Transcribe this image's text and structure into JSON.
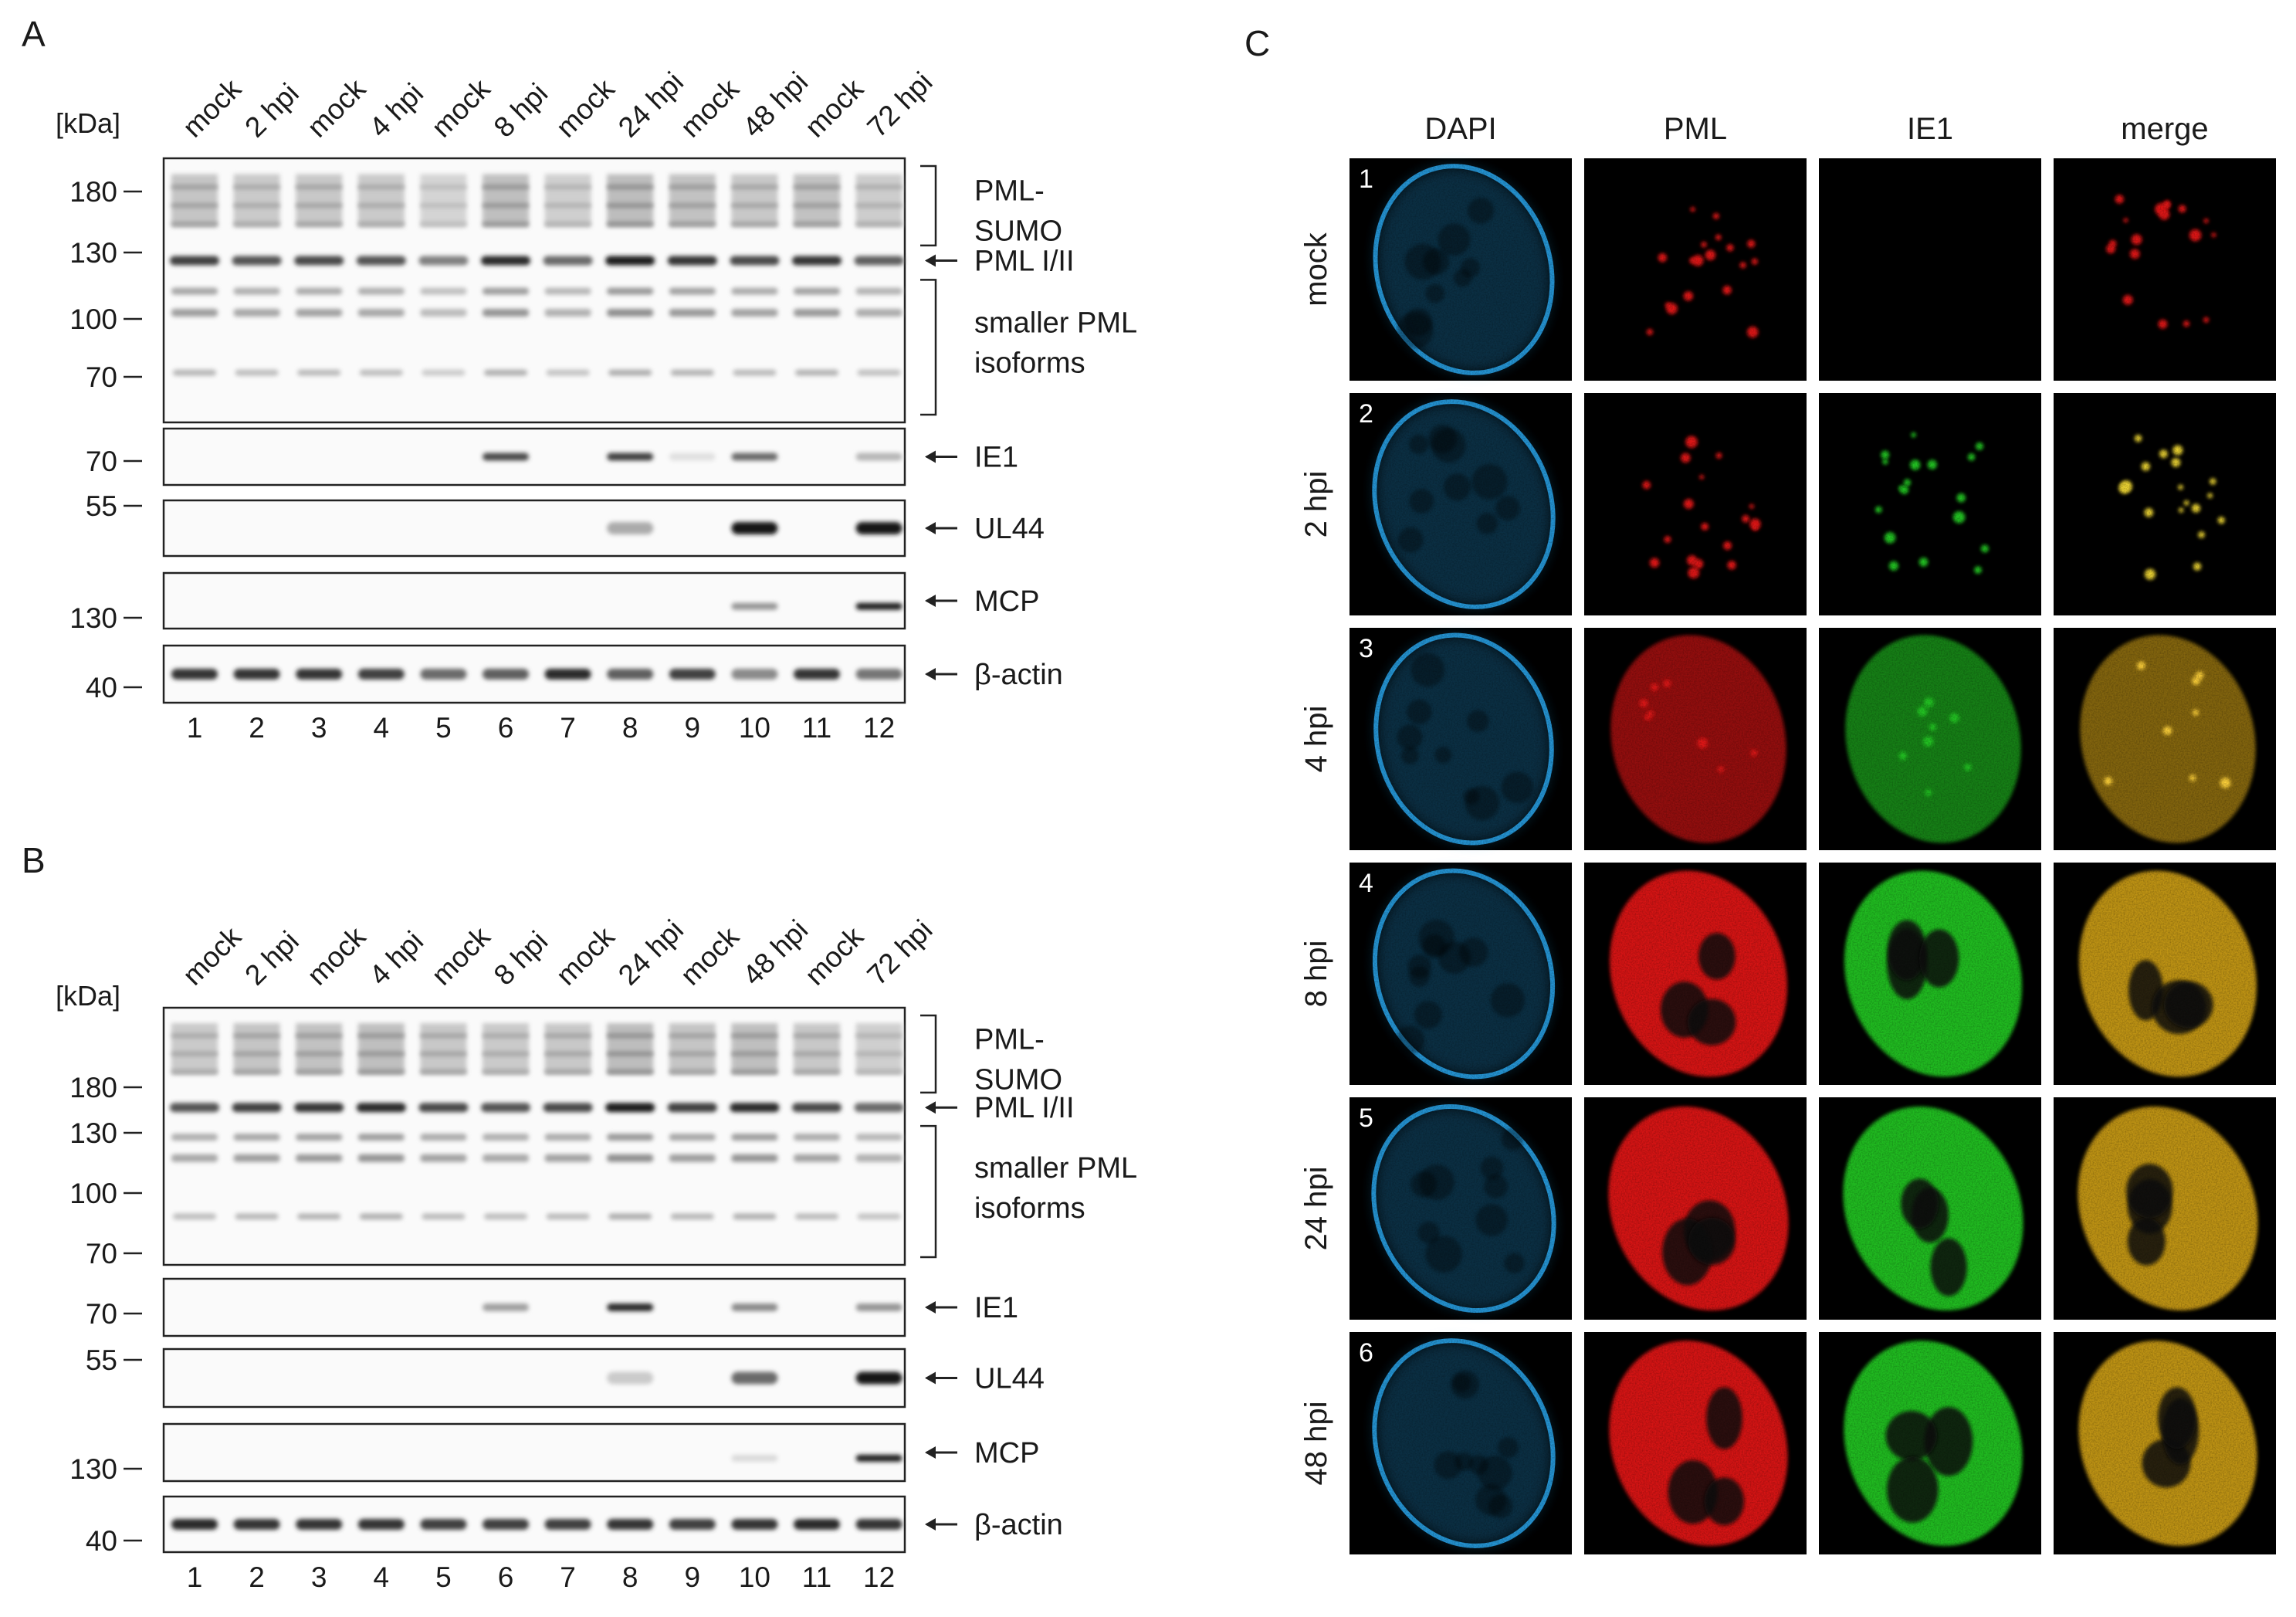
{
  "panel_letters": [
    "A",
    "B",
    "C"
  ],
  "western": {
    "kda_unit": "[kDa]",
    "lane_headers": [
      "mock",
      "2 hpi",
      "mock",
      "4 hpi",
      "mock",
      "8 hpi",
      "mock",
      "24 hpi",
      "mock",
      "48 hpi",
      "mock",
      "72 hpi"
    ],
    "lane_numbers": [
      "1",
      "2",
      "3",
      "4",
      "5",
      "6",
      "7",
      "8",
      "9",
      "10",
      "11",
      "12"
    ],
    "panels": [
      {
        "letter": "A",
        "pml_markers": [
          "180",
          "130",
          "100",
          "70"
        ],
        "ie1_marker": "70",
        "ul44_marker": "55",
        "mcp_marker": "130",
        "actin_marker": "40",
        "pml_sumo_label": [
          "PML-",
          "SUMO"
        ],
        "pml_label": "PML I/II",
        "smaller_label": [
          "smaller PML",
          "isoforms"
        ],
        "ie1_label": "IE1",
        "ul44_label": "UL44",
        "mcp_label": "MCP",
        "actin_label": "β-actin",
        "ie1_levels": [
          0,
          0,
          0,
          0,
          0,
          0.75,
          0,
          0.8,
          0.05,
          0.6,
          0,
          0.25
        ],
        "ul44_levels": [
          0,
          0,
          0,
          0,
          0,
          0,
          0,
          0.3,
          0,
          1.0,
          0,
          1.0
        ],
        "mcp_levels": [
          0,
          0,
          0,
          0,
          0,
          0,
          0,
          0,
          0,
          0.4,
          0,
          0.95
        ],
        "actin_levels": [
          0.85,
          0.85,
          0.85,
          0.8,
          0.6,
          0.65,
          0.9,
          0.65,
          0.8,
          0.45,
          0.85,
          0.55
        ],
        "pml_levels": [
          0.8,
          0.7,
          0.75,
          0.7,
          0.5,
          0.9,
          0.6,
          0.95,
          0.85,
          0.75,
          0.85,
          0.65
        ]
      },
      {
        "letter": "B",
        "pml_markers": [
          "180",
          "130",
          "100",
          "70"
        ],
        "ie1_marker": "70",
        "ul44_marker": "55",
        "mcp_marker": "130",
        "actin_marker": "40",
        "pml_sumo_label": [
          "PML-",
          "SUMO"
        ],
        "pml_label": "PML I/II",
        "smaller_label": [
          "smaller PML",
          "isoforms"
        ],
        "ie1_label": "IE1",
        "ul44_label": "UL44",
        "mcp_label": "MCP",
        "actin_label": "β-actin",
        "ie1_levels": [
          0,
          0,
          0,
          0,
          0,
          0.35,
          0,
          0.9,
          0,
          0.45,
          0,
          0.4
        ],
        "ul44_levels": [
          0,
          0,
          0,
          0,
          0,
          0,
          0,
          0.15,
          0,
          0.6,
          0,
          1.0
        ],
        "mcp_levels": [
          0,
          0,
          0,
          0,
          0,
          0,
          0,
          0,
          0,
          0.08,
          0,
          0.95
        ],
        "actin_levels": [
          0.9,
          0.85,
          0.85,
          0.85,
          0.8,
          0.8,
          0.8,
          0.85,
          0.8,
          0.85,
          0.9,
          0.85
        ],
        "pml_levels": [
          0.7,
          0.8,
          0.85,
          0.9,
          0.75,
          0.7,
          0.75,
          0.95,
          0.8,
          0.9,
          0.75,
          0.6
        ]
      }
    ]
  },
  "microscopy": {
    "letter": "C",
    "columns": [
      "DAPI",
      "PML",
      "IE1",
      "merge"
    ],
    "rows": [
      {
        "num": "1",
        "label": "mock",
        "pml": "dots",
        "ie1": "none"
      },
      {
        "num": "2",
        "label": "2 hpi",
        "pml": "dots",
        "ie1": "dots"
      },
      {
        "num": "3",
        "label": "4 hpi",
        "pml": "diffuse_dots",
        "ie1": "diffuse_dots"
      },
      {
        "num": "4",
        "label": "8 hpi",
        "pml": "diffuse",
        "ie1": "diffuse"
      },
      {
        "num": "5",
        "label": "24 hpi",
        "pml": "diffuse",
        "ie1": "diffuse"
      },
      {
        "num": "6",
        "label": "48 hpi",
        "pml": "diffuse",
        "ie1": "diffuse"
      }
    ],
    "colors": {
      "dapi": "#2aa8f0",
      "pml": "#e01818",
      "ie1": "#22c422",
      "merge": "#c89a18"
    }
  }
}
